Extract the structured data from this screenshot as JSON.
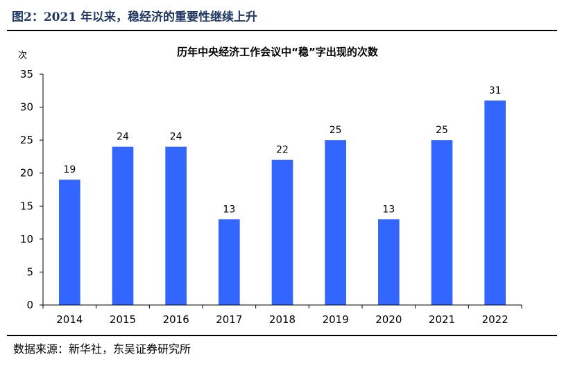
{
  "figure": {
    "title": "图2：2021 年以来，稳经济的重要性继续上升",
    "source": "数据来源：新华社，东吴证券研究所"
  },
  "chart_data": {
    "type": "bar",
    "title": "历年中央经济工作会议中“稳”字出现的次数",
    "ylabel": "次",
    "xlabel": "",
    "categories": [
      "2014",
      "2015",
      "2016",
      "2017",
      "2018",
      "2019",
      "2020",
      "2021",
      "2022"
    ],
    "values": [
      19,
      24,
      24,
      13,
      22,
      25,
      13,
      25,
      31
    ],
    "ylim": [
      0,
      35
    ],
    "yticks": [
      0,
      5,
      10,
      15,
      20,
      25,
      30,
      35
    ],
    "grid": false,
    "data_labels": true,
    "bar_color": "#3366ff"
  }
}
